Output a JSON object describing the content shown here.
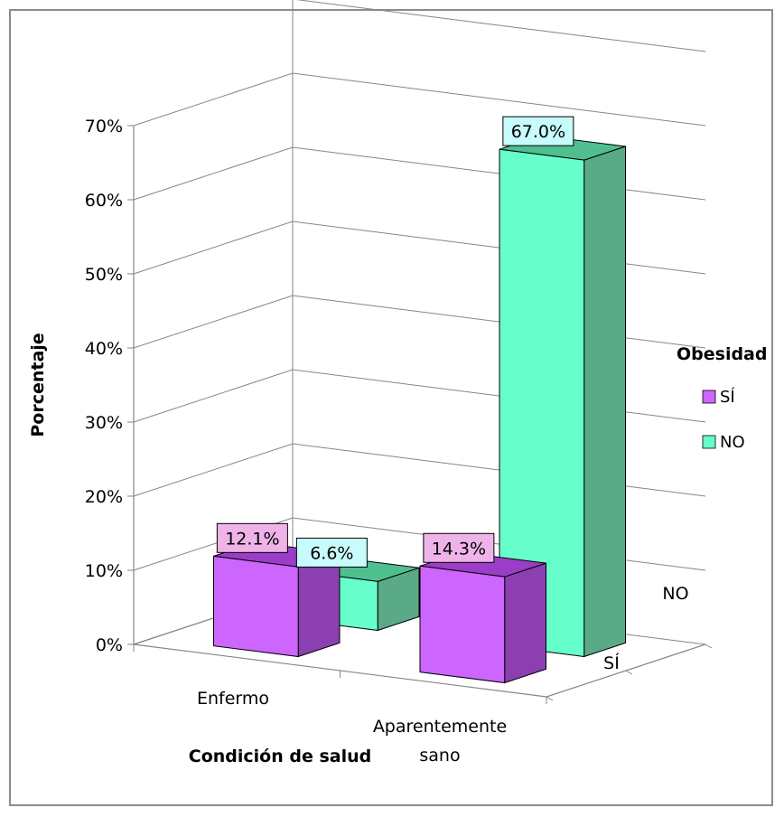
{
  "chart_data": {
    "type": "bar",
    "ylabel": "Porcentaje",
    "xlabel": "Condición de salud",
    "yticks": [
      "0%",
      "10%",
      "20%",
      "30%",
      "40%",
      "50%",
      "60%",
      "70%"
    ],
    "ylim": [
      0,
      70
    ],
    "categories": [
      "Enfermo",
      "Aparentemente sano"
    ],
    "category_lines": [
      [
        "Enfermo"
      ],
      [
        "Aparentemente",
        "sano"
      ]
    ],
    "depth_labels": [
      "SÍ",
      "NO"
    ],
    "legend": {
      "title": "Obesidad",
      "items": [
        {
          "label": "SÍ",
          "color": "#cc66ff"
        },
        {
          "label": "NO",
          "color": "#66ffcc"
        }
      ]
    },
    "series": [
      {
        "name": "SÍ",
        "values": [
          12.1,
          14.3
        ],
        "labels": [
          "12.1%",
          "14.3%"
        ],
        "front": "#cc66ff",
        "top": "#9b3dc7",
        "side": "#8b3fb0",
        "label_bg": "#eeb3e8"
      },
      {
        "name": "NO",
        "values": [
          6.6,
          67.0
        ],
        "labels": [
          "6.6%",
          "67.0%"
        ],
        "front": "#66ffcc",
        "top": "#4fbf8f",
        "side": "#5aaa88",
        "label_bg": "#c8fbfb"
      }
    ]
  }
}
